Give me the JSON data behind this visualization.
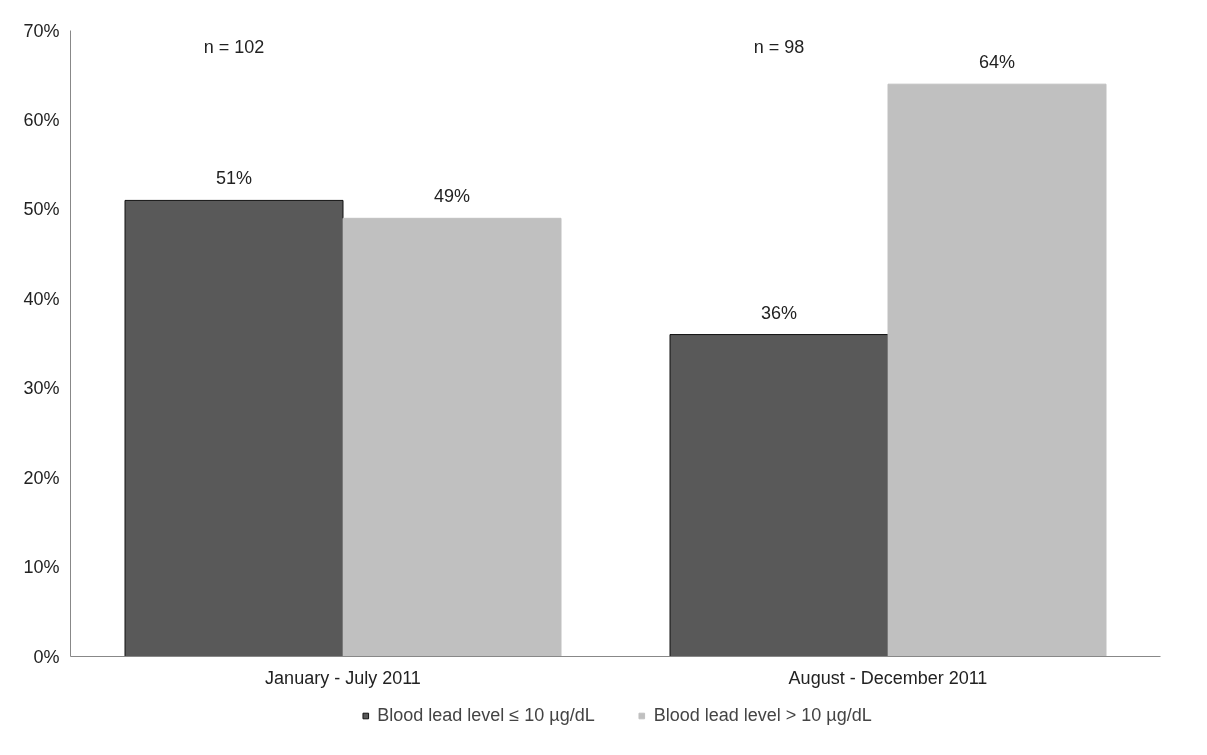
{
  "chart_data": {
    "type": "bar",
    "categories": [
      "January - July 2011",
      "August - December 2011"
    ],
    "series": [
      {
        "name": "Blood lead level ≤ 10 µg/dL",
        "color": "#595959",
        "values": [
          51,
          36
        ],
        "value_labels": [
          "51%",
          "36%"
        ]
      },
      {
        "name": "Blood lead level > 10 µg/dL",
        "color": "#c0c0c0",
        "values": [
          49,
          64
        ],
        "value_labels": [
          "49%",
          "64%"
        ]
      }
    ],
    "ylim": [
      0,
      70
    ],
    "yticks": [
      {
        "value": 0,
        "label": "0%"
      },
      {
        "value": 10,
        "label": "10%"
      },
      {
        "value": 20,
        "label": "20%"
      },
      {
        "value": 30,
        "label": "30%"
      },
      {
        "value": 40,
        "label": "40%"
      },
      {
        "value": 50,
        "label": "50%"
      },
      {
        "value": 60,
        "label": "60%"
      },
      {
        "value": 70,
        "label": "70%"
      }
    ],
    "annotations": [
      "n = 102",
      "n = 98"
    ],
    "legend": "bottom",
    "grid": false
  }
}
